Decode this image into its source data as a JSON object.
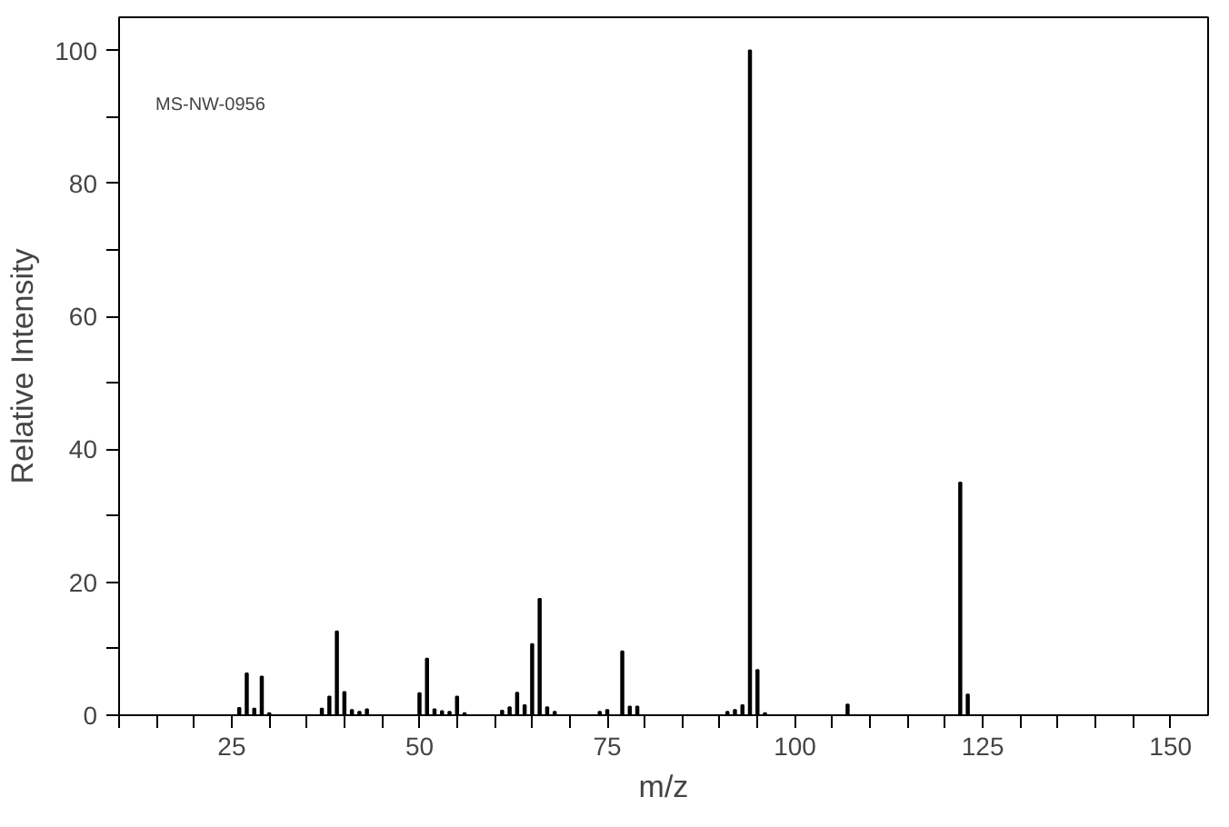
{
  "chart_data": {
    "type": "bar",
    "xlabel": "m/z",
    "ylabel": "Relative Intensity",
    "annotations": [
      "MS-NW-0956"
    ],
    "color": "#000000",
    "grid": false,
    "x": [
      26,
      27,
      28,
      29,
      30,
      37,
      38,
      39,
      40,
      41,
      42,
      43,
      50,
      51,
      52,
      53,
      54,
      55,
      56,
      61,
      62,
      63,
      64,
      65,
      66,
      67,
      68,
      74,
      75,
      77,
      78,
      79,
      91,
      92,
      93,
      94,
      95,
      96,
      107,
      122,
      123
    ],
    "values": [
      1.1,
      6.3,
      1.0,
      5.8,
      0.3,
      1.0,
      2.8,
      12.6,
      3.5,
      0.8,
      0.5,
      0.9,
      3.3,
      8.5,
      0.9,
      0.6,
      0.5,
      2.8,
      0.3,
      0.7,
      1.2,
      3.4,
      1.5,
      10.7,
      17.5,
      1.2,
      0.5,
      0.5,
      0.8,
      9.6,
      1.3,
      1.3,
      0.5,
      0.8,
      1.5,
      100,
      6.8,
      0.3,
      1.6,
      35,
      3.1
    ],
    "xlim": [
      10,
      155
    ],
    "ylim": [
      0,
      105
    ],
    "xticks": [
      {
        "value": 10,
        "label": null
      },
      {
        "value": 15,
        "label": null
      },
      {
        "value": 20,
        "label": null
      },
      25,
      {
        "value": 30,
        "label": null
      },
      {
        "value": 35,
        "label": null
      },
      {
        "value": 40,
        "label": null
      },
      {
        "value": 45,
        "label": null
      },
      50,
      {
        "value": 55,
        "label": null
      },
      {
        "value": 60,
        "label": null
      },
      {
        "value": 65,
        "label": null
      },
      {
        "value": 70,
        "label": null
      },
      75,
      {
        "value": 80,
        "label": null
      },
      {
        "value": 85,
        "label": null
      },
      {
        "value": 90,
        "label": null
      },
      {
        "value": 95,
        "label": null
      },
      100,
      {
        "value": 105,
        "label": null
      },
      {
        "value": 110,
        "label": null
      },
      {
        "value": 115,
        "label": null
      },
      {
        "value": 120,
        "label": null
      },
      125,
      {
        "value": 130,
        "label": null
      },
      {
        "value": 135,
        "label": null
      },
      {
        "value": 140,
        "label": null
      },
      {
        "value": 145,
        "label": null
      },
      150
    ],
    "yticks": [
      0,
      {
        "value": 10,
        "label": null
      },
      20,
      {
        "value": 30,
        "label": null
      },
      40,
      {
        "value": 50,
        "label": null
      },
      60,
      {
        "value": 70,
        "label": null
      },
      80,
      {
        "value": 90,
        "label": null
      },
      100
    ]
  }
}
